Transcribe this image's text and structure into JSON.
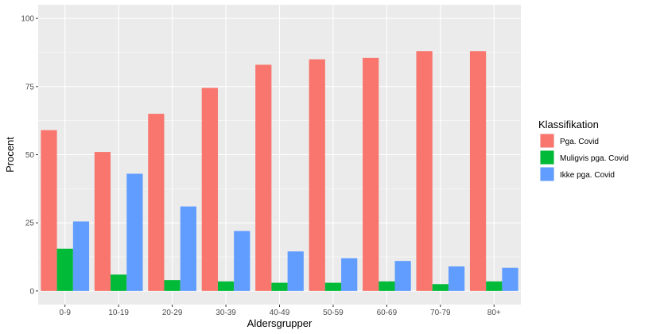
{
  "chart_data": {
    "type": "bar",
    "title": "",
    "xlabel": "Aldersgrupper",
    "ylabel": "Procent",
    "ylim": [
      0,
      100
    ],
    "yticks": [
      0,
      25,
      50,
      75,
      100
    ],
    "grid": true,
    "legend_position": "right",
    "legend_title": "Klassifikation",
    "categories": [
      "0-9",
      "10-19",
      "20-29",
      "30-39",
      "40-49",
      "50-59",
      "60-69",
      "70-79",
      "80+"
    ],
    "series": [
      {
        "name": "Pga. Covid",
        "color": "#F8766D",
        "values": [
          59,
          51,
          65,
          74.5,
          83,
          85,
          85.5,
          88,
          88
        ]
      },
      {
        "name": "Muligvis pga. Covid",
        "color": "#00BA38",
        "values": [
          15.5,
          6,
          4,
          3.5,
          3,
          3,
          3.5,
          2.5,
          3.5
        ]
      },
      {
        "name": "Ikke pga. Covid",
        "color": "#619CFF",
        "values": [
          25.5,
          43,
          31,
          22,
          14.5,
          12,
          11,
          9,
          8.5
        ]
      }
    ]
  }
}
